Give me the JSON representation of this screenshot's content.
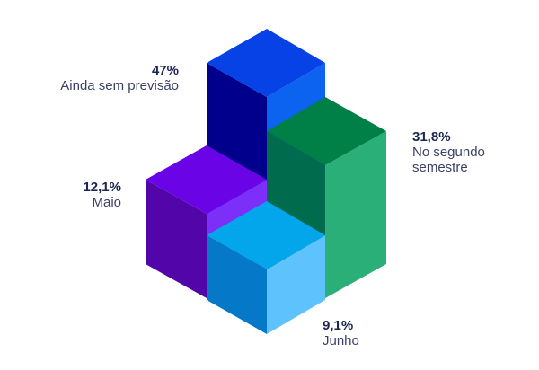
{
  "chart_data": {
    "type": "3d-stacked-blocks",
    "title": "",
    "series": [
      {
        "label": "Ainda sem previsão",
        "value_text": "47%",
        "value": 47.0,
        "colors": {
          "top": "#0742e6",
          "left": "#00008d",
          "right": "#0b63f0"
        }
      },
      {
        "label": "No segundo semestre",
        "value_text": "31,8%",
        "value": 31.8,
        "colors": {
          "top": "#007f47",
          "left": "#006c4d",
          "right": "#2aaf78"
        }
      },
      {
        "label": "Maio",
        "value_text": "12,1%",
        "value": 12.1,
        "colors": {
          "top": "#6a04e6",
          "left": "#5205a8",
          "right": "#7b2ff8"
        }
      },
      {
        "label": "Junho",
        "value_text": "9,1%",
        "value": 9.1,
        "colors": {
          "top": "#03a6ea",
          "left": "#0578c8",
          "right": "#5ec2fc"
        }
      }
    ]
  }
}
